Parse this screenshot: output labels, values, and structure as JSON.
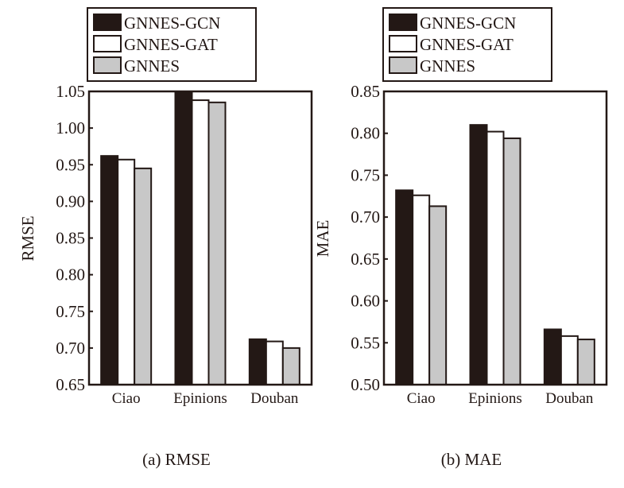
{
  "chart_data": [
    {
      "type": "bar",
      "caption": "(a) RMSE",
      "ylabel": "RMSE",
      "xlabel": "",
      "categories": [
        "Ciao",
        "Epinions",
        "Douban"
      ],
      "ylim": [
        0.65,
        1.05
      ],
      "yticks": [
        "0.65",
        "0.70",
        "0.75",
        "0.80",
        "0.85",
        "0.90",
        "0.95",
        "1.00",
        "1.05"
      ],
      "legend_position": "top",
      "series": [
        {
          "name": "GNNES-GCN",
          "values": [
            0.962,
            1.05,
            0.712
          ]
        },
        {
          "name": "GNNES-GAT",
          "values": [
            0.957,
            1.038,
            0.709
          ]
        },
        {
          "name": "GNNES",
          "values": [
            0.945,
            1.035,
            0.7
          ]
        }
      ]
    },
    {
      "type": "bar",
      "caption": "(b) MAE",
      "ylabel": "MAE",
      "xlabel": "",
      "categories": [
        "Ciao",
        "Epinions",
        "Douban"
      ],
      "ylim": [
        0.5,
        0.85
      ],
      "yticks": [
        "0.50",
        "0.55",
        "0.60",
        "0.65",
        "0.70",
        "0.75",
        "0.80",
        "0.85"
      ],
      "legend_position": "top",
      "series": [
        {
          "name": "GNNES-GCN",
          "values": [
            0.732,
            0.81,
            0.566
          ]
        },
        {
          "name": "GNNES-GAT",
          "values": [
            0.726,
            0.802,
            0.558
          ]
        },
        {
          "name": "GNNES",
          "values": [
            0.713,
            0.794,
            0.554
          ]
        }
      ]
    }
  ],
  "colors": {
    "GNNES-GCN": "#231815",
    "GNNES-GAT": "#ffffff",
    "GNNES": "#c8c8c8",
    "stroke": "#231815"
  }
}
